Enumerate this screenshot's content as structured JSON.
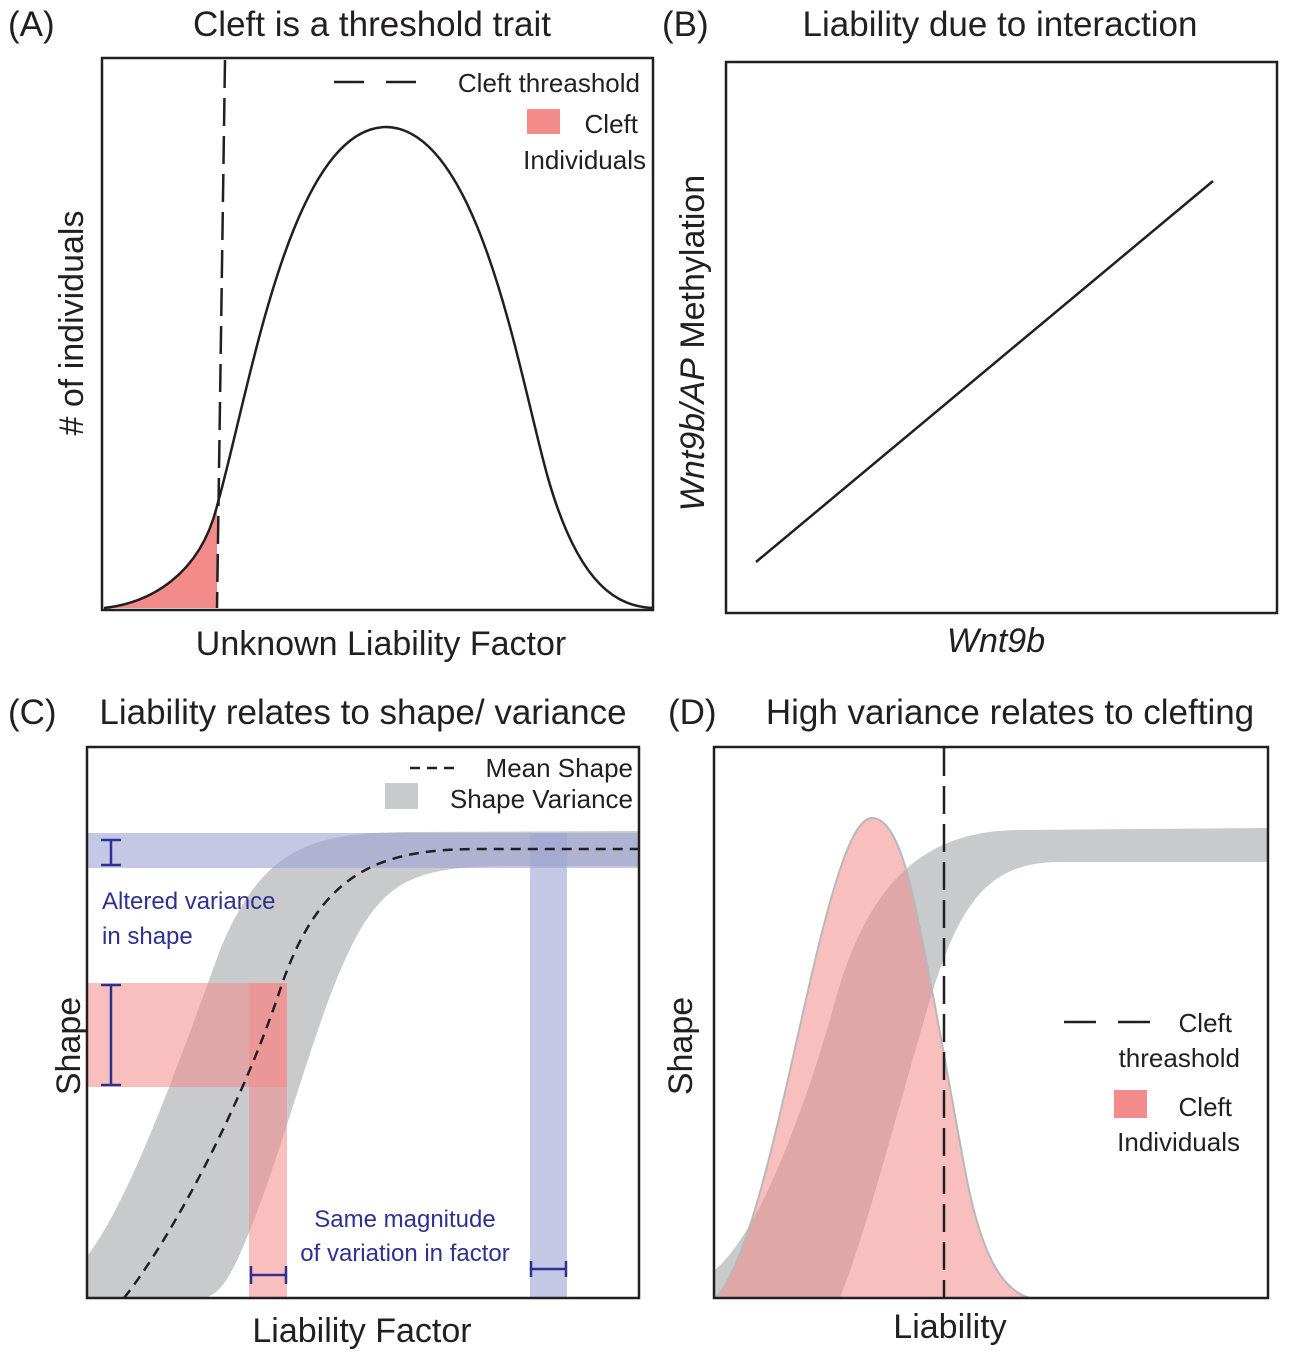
{
  "colors": {
    "cleft_fill": "#f48b8b",
    "variance_gray": "#c8cacc",
    "altered_blue": "#9fa3d4",
    "annotation_blue": "#2e3192"
  },
  "panel_a": {
    "letter": "(A)",
    "title": "Cleft is a threshold trait",
    "ylabel": "# of individuals",
    "xlabel": "Unknown Liability Factor",
    "legend_threshold": "Cleft threashold",
    "legend_cleft_line1": "Cleft",
    "legend_cleft_line2": "Individuals"
  },
  "panel_b": {
    "letter": "(B)",
    "title": "Liability due to interaction",
    "ylabel_italic": "Wnt9b/AP",
    "ylabel_rest": " Methylation",
    "xlabel": "Wnt9b"
  },
  "panel_c": {
    "letter": "(C)",
    "title": "Liability relates to shape/ variance",
    "ylabel": "Shape",
    "xlabel": "Liability Factor",
    "legend_mean": "Mean Shape",
    "legend_variance": "Shape Variance",
    "note_altered_line1": "Altered variance",
    "note_altered_line2": "in shape",
    "note_same_line1": "Same magnitude",
    "note_same_line2": "of variation in factor"
  },
  "panel_d": {
    "letter": "(D)",
    "title": "High variance relates to clefting",
    "ylabel": "Shape",
    "xlabel": "Liability",
    "legend_threshold_line1": "Cleft",
    "legend_threshold_line2": "threashold",
    "legend_cleft_line1": "Cleft",
    "legend_cleft_line2": "Individuals"
  }
}
